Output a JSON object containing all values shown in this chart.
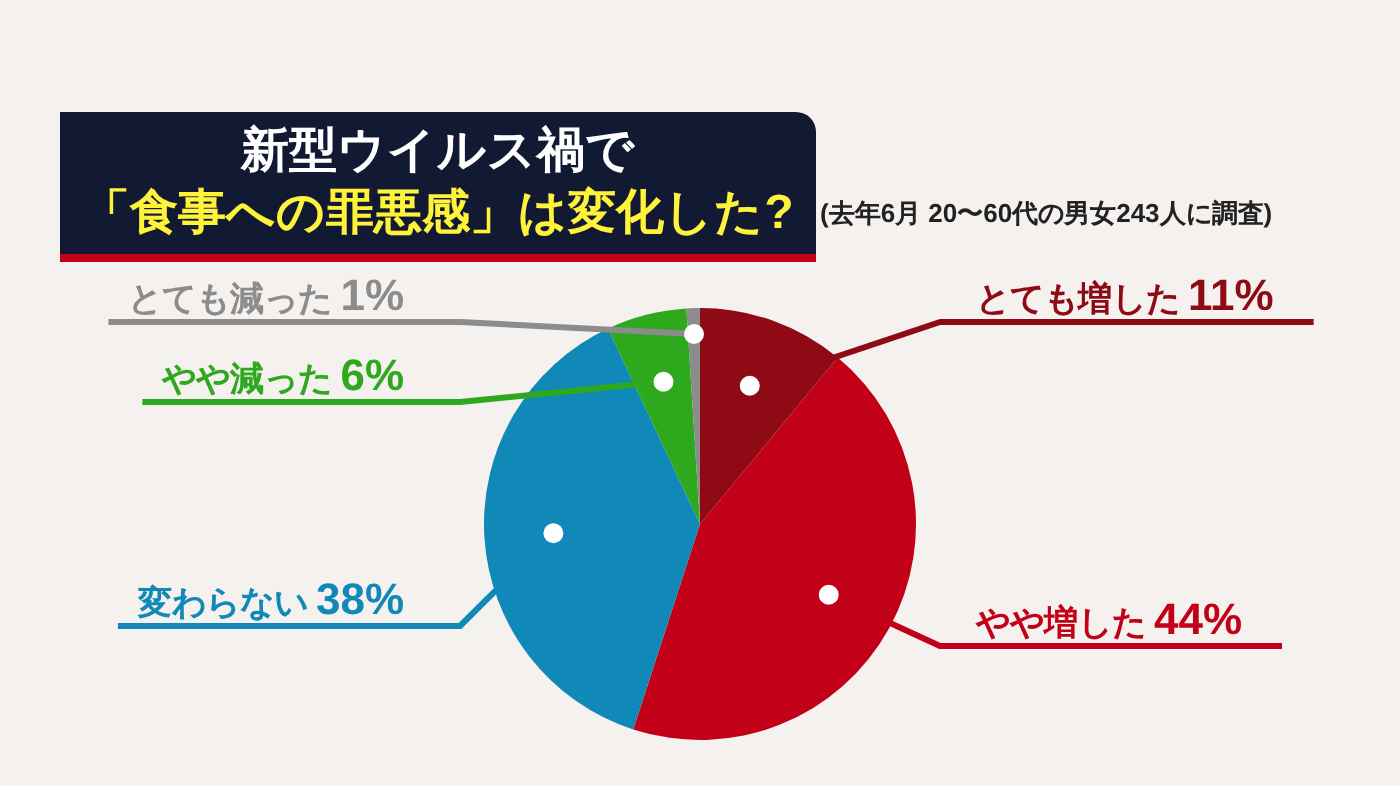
{
  "chart_data": {
    "type": "pie",
    "title": "新型ウイルス禍で",
    "subtitle": "「食事への罪悪感」は変化した?",
    "categories": [
      "とても増した",
      "やや増した",
      "変わらない",
      "やや減った",
      "とても減った"
    ],
    "values": [
      11,
      44,
      38,
      6,
      1
    ],
    "value_labels": [
      "11%",
      "44%",
      "38%",
      "6%",
      "1%"
    ],
    "colors": [
      "#8e0a14",
      "#c20018",
      "#1088b8",
      "#2ea81c",
      "#8c8c8c"
    ],
    "annotations": [
      "(去年6月 20〜60代の男女243人に調査)"
    ]
  }
}
